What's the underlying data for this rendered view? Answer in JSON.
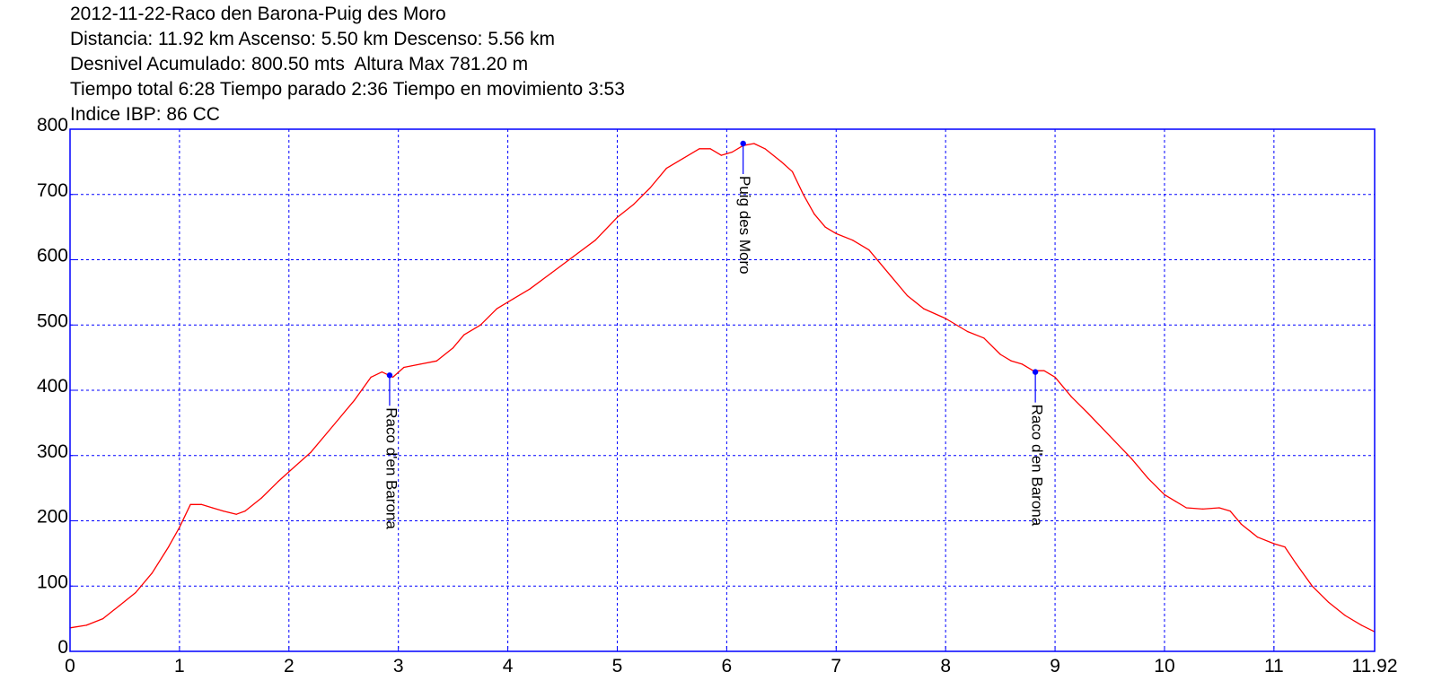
{
  "header": {
    "line1": "2012-11-22-Raco den Barona-Puig des Moro",
    "line2": "Distancia: 11.92 km Ascenso: 5.50 km Descenso: 5.56 km",
    "line3": "Desnivel Acumulado: 800.50 mts  Altura Max 781.20 m",
    "line4": "Tiempo total 6:28 Tiempo parado 2:36 Tiempo en movimiento 3:53",
    "line5": "Indice IBP: 86 CC"
  },
  "chart_data": {
    "type": "line",
    "title": "2012-11-22-Raco den Barona-Puig des Moro",
    "xlabel": "",
    "ylabel": "",
    "xlim": [
      0,
      11.92
    ],
    "ylim": [
      0,
      800
    ],
    "grid": true,
    "x_ticks": [
      "0",
      "1",
      "2",
      "3",
      "4",
      "5",
      "6",
      "7",
      "8",
      "9",
      "10",
      "11",
      "11.92"
    ],
    "y_ticks": [
      "0",
      "100",
      "200",
      "300",
      "400",
      "500",
      "600",
      "700",
      "800"
    ],
    "colors": {
      "line": "#ff0000",
      "axes": "#0000ff",
      "grid": "#0000ff",
      "marker": "#0000ff"
    },
    "series": [
      {
        "x": [
          0,
          0.15,
          0.3,
          0.45,
          0.6,
          0.75,
          0.9,
          1.0,
          1.1,
          1.2,
          1.3,
          1.4,
          1.52,
          1.6,
          1.75,
          1.9,
          2.0,
          2.2,
          2.4,
          2.6,
          2.75,
          2.85,
          2.95,
          3.05,
          3.2,
          3.35,
          3.5,
          3.6,
          3.75,
          3.9,
          4.05,
          4.2,
          4.4,
          4.6,
          4.8,
          5.0,
          5.15,
          5.3,
          5.45,
          5.6,
          5.75,
          5.85,
          5.95,
          6.05,
          6.15,
          6.25,
          6.35,
          6.5,
          6.6,
          6.7,
          6.8,
          6.9,
          7.0,
          7.15,
          7.3,
          7.5,
          7.65,
          7.8,
          8.0,
          8.2,
          8.35,
          8.5,
          8.6,
          8.7,
          8.8,
          8.9,
          9.0,
          9.15,
          9.3,
          9.5,
          9.7,
          9.85,
          10.0,
          10.1,
          10.2,
          10.35,
          10.5,
          10.6,
          10.7,
          10.85,
          11.0,
          11.1,
          11.2,
          11.35,
          11.5,
          11.65,
          11.8,
          11.92
        ],
        "y": [
          36,
          40,
          50,
          70,
          90,
          120,
          160,
          190,
          225,
          225,
          220,
          215,
          210,
          215,
          235,
          260,
          275,
          305,
          345,
          385,
          420,
          428,
          420,
          435,
          440,
          445,
          465,
          485,
          500,
          525,
          540,
          555,
          580,
          605,
          630,
          665,
          685,
          710,
          740,
          755,
          770,
          770,
          760,
          765,
          775,
          778,
          770,
          750,
          735,
          700,
          670,
          650,
          640,
          630,
          615,
          575,
          545,
          525,
          510,
          490,
          480,
          455,
          445,
          440,
          430,
          430,
          420,
          390,
          365,
          330,
          295,
          265,
          240,
          230,
          220,
          218,
          220,
          215,
          195,
          175,
          165,
          160,
          135,
          100,
          75,
          55,
          40,
          30
        ]
      }
    ],
    "waypoints": [
      {
        "label": "Raco d'en Barona",
        "x": 2.92,
        "y": 423
      },
      {
        "label": "Puig des Moro",
        "x": 6.15,
        "y": 778
      },
      {
        "label": "Raco d'en Barona",
        "x": 8.82,
        "y": 428
      }
    ]
  }
}
